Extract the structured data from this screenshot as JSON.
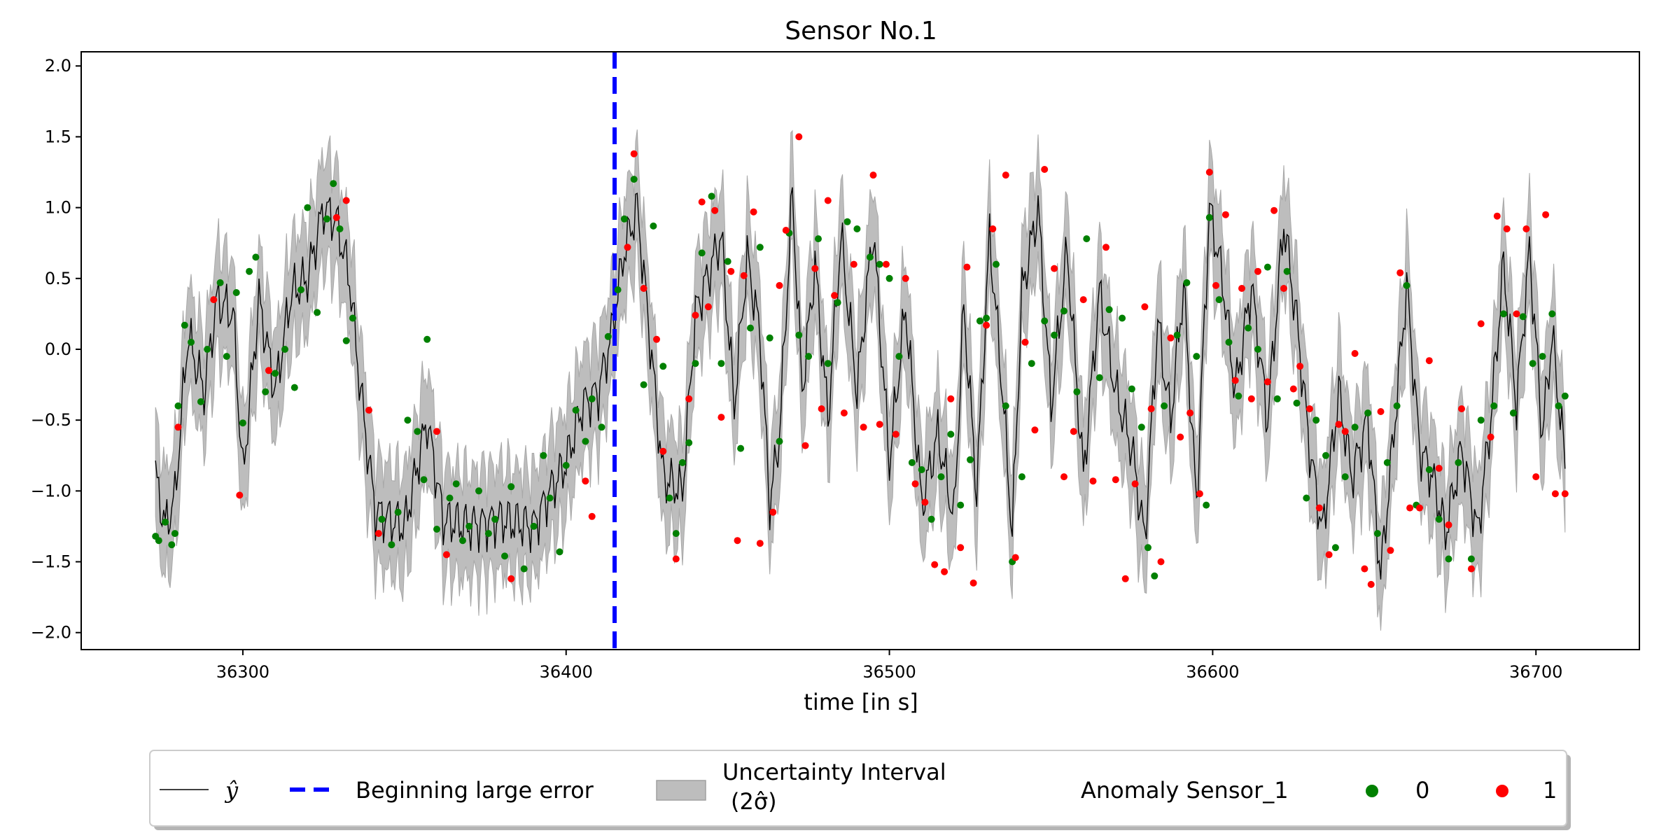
{
  "chart_data": {
    "type": "line",
    "title": "Sensor No.1",
    "xlabel": "time [in s]",
    "ylabel": "",
    "xlim": [
      36250,
      36732
    ],
    "ylim": [
      -2.12,
      2.1
    ],
    "x_ticks": [
      36300,
      36400,
      36500,
      36600,
      36700
    ],
    "x_tick_labels": [
      "36300",
      "36400",
      "36500",
      "36600",
      "36700"
    ],
    "y_ticks": [
      2.0,
      1.5,
      1.0,
      0.5,
      0.0,
      -0.5,
      -1.0,
      -1.5,
      -2.0
    ],
    "y_tick_labels": [
      "2.0",
      "1.5",
      "1.0",
      "0.5",
      "0.0",
      "−0.5",
      "−1.0",
      "−1.5",
      "−2.0"
    ],
    "x_start": 36273,
    "x_end": 36709,
    "vline_x": 36415,
    "sigma_band_halfwidth": 0.38,
    "prediction_keypoints": [
      [
        36273,
        -0.9
      ],
      [
        36276,
        -1.25
      ],
      [
        36279,
        -1.05
      ],
      [
        36283,
        0.1
      ],
      [
        36288,
        -0.3
      ],
      [
        36292,
        0.35
      ],
      [
        36297,
        0.25
      ],
      [
        36300,
        -0.9
      ],
      [
        36305,
        0.35
      ],
      [
        36310,
        -0.3
      ],
      [
        36315,
        0.4
      ],
      [
        36320,
        0.5
      ],
      [
        36325,
        1.0
      ],
      [
        36329,
        0.9
      ],
      [
        36333,
        0.5
      ],
      [
        36336,
        -0.2
      ],
      [
        36338,
        -0.6
      ],
      [
        36341,
        -1.15
      ],
      [
        36350,
        -1.25
      ],
      [
        36357,
        -0.5
      ],
      [
        36362,
        -1.2
      ],
      [
        36370,
        -1.25
      ],
      [
        36380,
        -1.2
      ],
      [
        36390,
        -1.25
      ],
      [
        36395,
        -1.0
      ],
      [
        36400,
        -0.8
      ],
      [
        36405,
        -0.4
      ],
      [
        36410,
        -0.3
      ],
      [
        36414,
        0.1
      ],
      [
        36418,
        0.7
      ],
      [
        36422,
        1.0
      ],
      [
        36425,
        0.3
      ],
      [
        36430,
        -0.9
      ],
      [
        36436,
        -1.0
      ],
      [
        36440,
        0.25
      ],
      [
        36445,
        0.6
      ],
      [
        36448,
        0.8
      ],
      [
        36452,
        -0.4
      ],
      [
        36456,
        0.65
      ],
      [
        36460,
        0.1
      ],
      [
        36463,
        -1.1
      ],
      [
        36466,
        -0.6
      ],
      [
        36470,
        1.1
      ],
      [
        36473,
        -0.3
      ],
      [
        36477,
        0.6
      ],
      [
        36481,
        -0.5
      ],
      [
        36485,
        0.8
      ],
      [
        36490,
        -0.3
      ],
      [
        36495,
        0.85
      ],
      [
        36500,
        -0.8
      ],
      [
        36505,
        0.3
      ],
      [
        36510,
        -1.1
      ],
      [
        36515,
        -0.6
      ],
      [
        36520,
        -1.2
      ],
      [
        36523,
        0.3
      ],
      [
        36527,
        -1.0
      ],
      [
        36531,
        0.8
      ],
      [
        36535,
        -0.3
      ],
      [
        36538,
        -1.3
      ],
      [
        36541,
        0.4
      ],
      [
        36546,
        1.0
      ],
      [
        36550,
        -0.4
      ],
      [
        36555,
        0.7
      ],
      [
        36560,
        -0.9
      ],
      [
        36565,
        0.4
      ],
      [
        36570,
        -0.3
      ],
      [
        36575,
        -0.7
      ],
      [
        36579,
        -1.35
      ],
      [
        36583,
        0.2
      ],
      [
        36587,
        -0.5
      ],
      [
        36591,
        0.45
      ],
      [
        36595,
        -1.1
      ],
      [
        36599,
        1.0
      ],
      [
        36603,
        0.5
      ],
      [
        36607,
        -0.3
      ],
      [
        36612,
        0.45
      ],
      [
        36617,
        -0.5
      ],
      [
        36622,
        0.9
      ],
      [
        36626,
        0.2
      ],
      [
        36630,
        -0.7
      ],
      [
        36634,
        -1.3
      ],
      [
        36639,
        -0.3
      ],
      [
        36643,
        -0.9
      ],
      [
        36648,
        -0.5
      ],
      [
        36652,
        -1.6
      ],
      [
        36656,
        -0.6
      ],
      [
        36660,
        0.45
      ],
      [
        36664,
        -0.7
      ],
      [
        36668,
        -0.9
      ],
      [
        36672,
        -1.3
      ],
      [
        36677,
        -0.7
      ],
      [
        36682,
        -1.3
      ],
      [
        36686,
        -0.5
      ],
      [
        36690,
        0.6
      ],
      [
        36694,
        -0.4
      ],
      [
        36698,
        0.7
      ],
      [
        36702,
        -0.6
      ],
      [
        36705,
        0.1
      ],
      [
        36709,
        -0.8
      ]
    ],
    "anomaly_0_points": [
      [
        36273,
        -1.32
      ],
      [
        36274,
        -1.35
      ],
      [
        36276,
        -1.22
      ],
      [
        36278,
        -1.38
      ],
      [
        36279,
        -1.3
      ],
      [
        36280,
        -0.4
      ],
      [
        36282,
        0.17
      ],
      [
        36284,
        0.05
      ],
      [
        36287,
        -0.37
      ],
      [
        36289,
        0.0
      ],
      [
        36293,
        0.47
      ],
      [
        36295,
        -0.05
      ],
      [
        36298,
        0.4
      ],
      [
        36300,
        -0.52
      ],
      [
        36302,
        0.55
      ],
      [
        36304,
        0.65
      ],
      [
        36307,
        -0.3
      ],
      [
        36310,
        -0.17
      ],
      [
        36313,
        0.0
      ],
      [
        36316,
        -0.27
      ],
      [
        36318,
        0.42
      ],
      [
        36320,
        1.0
      ],
      [
        36323,
        0.26
      ],
      [
        36326,
        0.92
      ],
      [
        36328,
        1.17
      ],
      [
        36330,
        0.85
      ],
      [
        36332,
        0.06
      ],
      [
        36334,
        0.22
      ],
      [
        36343,
        -1.2
      ],
      [
        36346,
        -1.38
      ],
      [
        36348,
        -1.15
      ],
      [
        36351,
        -0.5
      ],
      [
        36354,
        -0.58
      ],
      [
        36356,
        -0.92
      ],
      [
        36357,
        0.07
      ],
      [
        36360,
        -1.27
      ],
      [
        36364,
        -1.05
      ],
      [
        36366,
        -0.95
      ],
      [
        36368,
        -1.35
      ],
      [
        36370,
        -1.25
      ],
      [
        36373,
        -1.0
      ],
      [
        36376,
        -1.3
      ],
      [
        36378,
        -1.2
      ],
      [
        36381,
        -1.46
      ],
      [
        36383,
        -0.97
      ],
      [
        36387,
        -1.55
      ],
      [
        36390,
        -1.25
      ],
      [
        36393,
        -0.75
      ],
      [
        36395,
        -1.05
      ],
      [
        36398,
        -1.43
      ],
      [
        36400,
        -0.82
      ],
      [
        36403,
        -0.43
      ],
      [
        36406,
        -0.65
      ],
      [
        36408,
        -0.35
      ],
      [
        36411,
        -0.55
      ],
      [
        36413,
        0.09
      ],
      [
        36416,
        0.42
      ],
      [
        36418,
        0.92
      ],
      [
        36421,
        1.2
      ],
      [
        36424,
        -0.25
      ],
      [
        36427,
        0.87
      ],
      [
        36430,
        -0.12
      ],
      [
        36432,
        -1.05
      ],
      [
        36434,
        -1.3
      ],
      [
        36436,
        -0.8
      ],
      [
        36438,
        -0.66
      ],
      [
        36440,
        -0.1
      ],
      [
        36442,
        0.68
      ],
      [
        36445,
        1.08
      ],
      [
        36448,
        -0.1
      ],
      [
        36450,
        0.62
      ],
      [
        36454,
        -0.7
      ],
      [
        36457,
        0.15
      ],
      [
        36460,
        0.72
      ],
      [
        36463,
        0.08
      ],
      [
        36466,
        -0.65
      ],
      [
        36469,
        0.82
      ],
      [
        36472,
        0.1
      ],
      [
        36475,
        -0.05
      ],
      [
        36478,
        0.78
      ],
      [
        36481,
        -0.1
      ],
      [
        36484,
        0.33
      ],
      [
        36487,
        0.9
      ],
      [
        36490,
        0.85
      ],
      [
        36494,
        0.65
      ],
      [
        36497,
        0.6
      ],
      [
        36500,
        0.5
      ],
      [
        36503,
        -0.05
      ],
      [
        36507,
        -0.8
      ],
      [
        36510,
        -0.85
      ],
      [
        36513,
        -1.2
      ],
      [
        36516,
        -0.9
      ],
      [
        36519,
        -0.6
      ],
      [
        36522,
        -1.1
      ],
      [
        36525,
        -0.78
      ],
      [
        36528,
        0.2
      ],
      [
        36530,
        0.22
      ],
      [
        36533,
        0.6
      ],
      [
        36536,
        -0.4
      ],
      [
        36538,
        -1.5
      ],
      [
        36541,
        -0.9
      ],
      [
        36544,
        -0.1
      ],
      [
        36548,
        0.2
      ],
      [
        36551,
        0.1
      ],
      [
        36554,
        0.27
      ],
      [
        36558,
        -0.3
      ],
      [
        36561,
        0.78
      ],
      [
        36565,
        -0.2
      ],
      [
        36568,
        0.28
      ],
      [
        36572,
        0.22
      ],
      [
        36575,
        -0.28
      ],
      [
        36578,
        -0.55
      ],
      [
        36580,
        -1.4
      ],
      [
        36582,
        -1.6
      ],
      [
        36585,
        -0.4
      ],
      [
        36589,
        0.1
      ],
      [
        36592,
        0.47
      ],
      [
        36595,
        -0.05
      ],
      [
        36598,
        -1.1
      ],
      [
        36599,
        0.93
      ],
      [
        36602,
        0.35
      ],
      [
        36605,
        0.05
      ],
      [
        36608,
        -0.33
      ],
      [
        36611,
        0.15
      ],
      [
        36614,
        0.0
      ],
      [
        36617,
        0.58
      ],
      [
        36620,
        -0.35
      ],
      [
        36623,
        0.55
      ],
      [
        36626,
        -0.38
      ],
      [
        36629,
        -1.05
      ],
      [
        36632,
        -0.5
      ],
      [
        36635,
        -0.75
      ],
      [
        36638,
        -1.4
      ],
      [
        36641,
        -0.9
      ],
      [
        36644,
        -0.55
      ],
      [
        36648,
        -0.45
      ],
      [
        36651,
        -1.3
      ],
      [
        36654,
        -0.8
      ],
      [
        36657,
        -0.4
      ],
      [
        36660,
        0.45
      ],
      [
        36663,
        -1.1
      ],
      [
        36667,
        -0.85
      ],
      [
        36670,
        -1.2
      ],
      [
        36673,
        -1.48
      ],
      [
        36676,
        -0.8
      ],
      [
        36680,
        -1.48
      ],
      [
        36683,
        -0.5
      ],
      [
        36687,
        -0.4
      ],
      [
        36690,
        0.25
      ],
      [
        36693,
        -0.45
      ],
      [
        36696,
        0.23
      ],
      [
        36699,
        -0.1
      ],
      [
        36702,
        -0.05
      ],
      [
        36705,
        0.25
      ],
      [
        36707,
        -0.4
      ],
      [
        36709,
        -0.33
      ]
    ],
    "anomaly_1_points": [
      [
        36280,
        -0.55
      ],
      [
        36291,
        0.35
      ],
      [
        36299,
        -1.03
      ],
      [
        36308,
        -0.15
      ],
      [
        36329,
        0.93
      ],
      [
        36332,
        1.05
      ],
      [
        36339,
        -0.43
      ],
      [
        36342,
        -1.3
      ],
      [
        36360,
        -0.58
      ],
      [
        36363,
        -1.45
      ],
      [
        36383,
        -1.62
      ],
      [
        36406,
        -0.93
      ],
      [
        36408,
        -1.18
      ],
      [
        36419,
        0.72
      ],
      [
        36421,
        1.38
      ],
      [
        36424,
        0.43
      ],
      [
        36428,
        0.07
      ],
      [
        36430,
        -0.72
      ],
      [
        36434,
        -1.48
      ],
      [
        36438,
        -0.35
      ],
      [
        36440,
        0.24
      ],
      [
        36442,
        1.04
      ],
      [
        36444,
        0.3
      ],
      [
        36446,
        0.98
      ],
      [
        36448,
        -0.48
      ],
      [
        36451,
        0.55
      ],
      [
        36453,
        -1.35
      ],
      [
        36455,
        0.52
      ],
      [
        36458,
        0.97
      ],
      [
        36460,
        -1.37
      ],
      [
        36464,
        -1.15
      ],
      [
        36466,
        0.45
      ],
      [
        36468,
        0.84
      ],
      [
        36472,
        1.5
      ],
      [
        36474,
        -0.68
      ],
      [
        36477,
        0.57
      ],
      [
        36479,
        -0.42
      ],
      [
        36481,
        1.05
      ],
      [
        36483,
        0.38
      ],
      [
        36486,
        -0.45
      ],
      [
        36489,
        0.6
      ],
      [
        36492,
        -0.55
      ],
      [
        36495,
        1.23
      ],
      [
        36497,
        -0.53
      ],
      [
        36499,
        0.6
      ],
      [
        36502,
        -0.6
      ],
      [
        36505,
        0.5
      ],
      [
        36508,
        -0.95
      ],
      [
        36511,
        -1.08
      ],
      [
        36514,
        -1.52
      ],
      [
        36517,
        -1.57
      ],
      [
        36519,
        -0.35
      ],
      [
        36522,
        -1.4
      ],
      [
        36524,
        0.58
      ],
      [
        36526,
        -1.65
      ],
      [
        36530,
        0.17
      ],
      [
        36532,
        0.85
      ],
      [
        36536,
        1.23
      ],
      [
        36539,
        -1.47
      ],
      [
        36542,
        0.05
      ],
      [
        36545,
        -0.57
      ],
      [
        36548,
        1.27
      ],
      [
        36551,
        0.57
      ],
      [
        36554,
        -0.9
      ],
      [
        36557,
        -0.58
      ],
      [
        36560,
        0.35
      ],
      [
        36563,
        -0.93
      ],
      [
        36567,
        0.72
      ],
      [
        36570,
        -0.92
      ],
      [
        36573,
        -1.62
      ],
      [
        36576,
        -0.95
      ],
      [
        36579,
        0.3
      ],
      [
        36581,
        -0.42
      ],
      [
        36584,
        -1.5
      ],
      [
        36587,
        0.08
      ],
      [
        36590,
        -0.62
      ],
      [
        36593,
        -0.45
      ],
      [
        36596,
        -1.02
      ],
      [
        36599,
        1.25
      ],
      [
        36601,
        0.45
      ],
      [
        36604,
        0.95
      ],
      [
        36607,
        -0.22
      ],
      [
        36609,
        0.43
      ],
      [
        36612,
        -0.35
      ],
      [
        36614,
        0.55
      ],
      [
        36617,
        -0.23
      ],
      [
        36619,
        0.98
      ],
      [
        36622,
        0.43
      ],
      [
        36625,
        -0.28
      ],
      [
        36627,
        -0.12
      ],
      [
        36630,
        -0.42
      ],
      [
        36633,
        -1.12
      ],
      [
        36636,
        -1.45
      ],
      [
        36639,
        -0.53
      ],
      [
        36641,
        -0.58
      ],
      [
        36644,
        -0.03
      ],
      [
        36647,
        -1.55
      ],
      [
        36649,
        -1.66
      ],
      [
        36652,
        -0.44
      ],
      [
        36655,
        -1.42
      ],
      [
        36658,
        0.54
      ],
      [
        36661,
        -1.12
      ],
      [
        36664,
        -1.12
      ],
      [
        36667,
        -0.08
      ],
      [
        36670,
        -0.84
      ],
      [
        36673,
        -1.24
      ],
      [
        36677,
        -0.42
      ],
      [
        36680,
        -1.55
      ],
      [
        36683,
        0.18
      ],
      [
        36686,
        -0.62
      ],
      [
        36688,
        0.94
      ],
      [
        36691,
        0.85
      ],
      [
        36694,
        0.25
      ],
      [
        36697,
        0.85
      ],
      [
        36700,
        -0.9
      ],
      [
        36703,
        0.95
      ],
      [
        36706,
        -1.02
      ],
      [
        36709,
        -1.02
      ]
    ],
    "legend": {
      "placement": "bottom-outside",
      "entries": [
        {
          "label": "ŷ",
          "kind": "line",
          "color": "#000000"
        },
        {
          "label": "Beginning large error",
          "kind": "dashed-line",
          "color": "#0000ff"
        },
        {
          "label_line1": "Uncertainty Interval",
          "label_line2": "(2σ̂)",
          "kind": "patch",
          "color": "#bdbdbd"
        },
        {
          "label": "Anomaly Sensor_1",
          "kind": "header"
        },
        {
          "label": "0",
          "kind": "marker",
          "color": "#008000"
        },
        {
          "label": "1",
          "kind": "marker",
          "color": "#ff0000"
        }
      ]
    },
    "colors": {
      "prediction": "#000000",
      "band": "#bdbdbd",
      "vline": "#0000ff",
      "anomaly_0": "#008000",
      "anomaly_1": "#ff0000"
    },
    "grid": false
  },
  "legend_labels": {
    "yhat": "ŷ",
    "vline": "Beginning large error",
    "band_line1": "Uncertainty Interval",
    "band_line2": "(2σ̂)",
    "anomaly_header": "Anomaly Sensor_1",
    "class_0": "0",
    "class_1": "1"
  }
}
